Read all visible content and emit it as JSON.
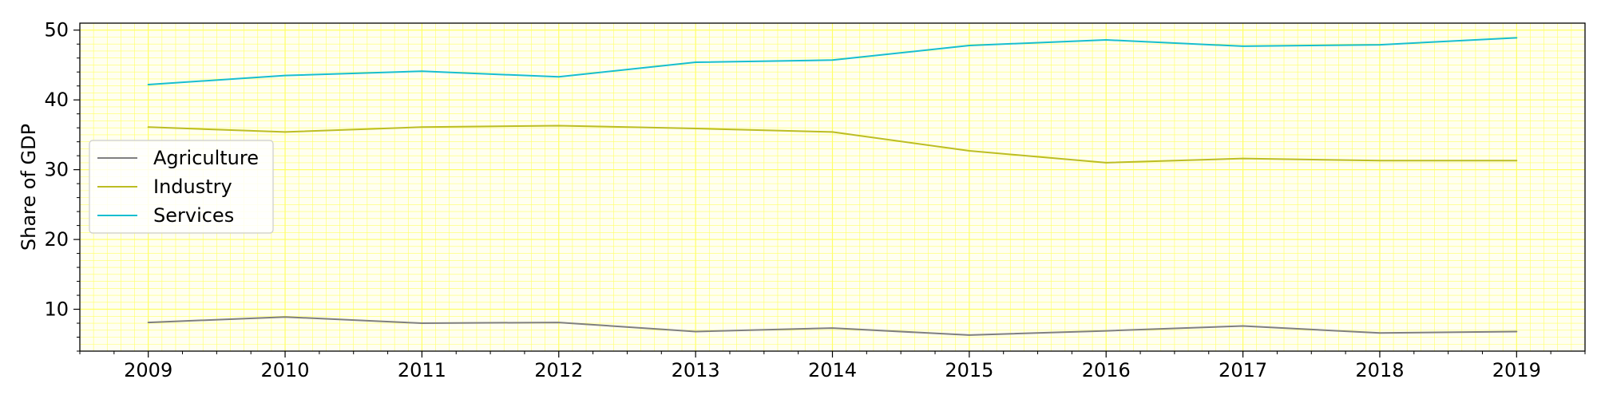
{
  "chart_data": {
    "type": "line",
    "title": "",
    "xlabel": "",
    "ylabel": "Share of GDP",
    "x": [
      2009,
      2010,
      2011,
      2012,
      2013,
      2014,
      2015,
      2016,
      2017,
      2018,
      2019
    ],
    "xlim": [
      2008.5,
      2019.5
    ],
    "ylim": [
      4,
      51
    ],
    "yticks": [
      10,
      20,
      30,
      40,
      50
    ],
    "grid": true,
    "grid_color": "#ffff66",
    "background": "#fffff0",
    "legend_position": "center-left",
    "series": [
      {
        "name": "Agriculture",
        "color": "#7f7f7f",
        "values": [
          8.1,
          8.9,
          8.0,
          8.1,
          6.8,
          7.3,
          6.3,
          6.9,
          7.6,
          6.6,
          6.8
        ]
      },
      {
        "name": "Industry",
        "color": "#bcbd22",
        "values": [
          36.1,
          35.4,
          36.1,
          36.3,
          35.9,
          35.4,
          32.7,
          31.0,
          31.6,
          31.3,
          31.3
        ]
      },
      {
        "name": "Services",
        "color": "#17becf",
        "values": [
          42.2,
          43.5,
          44.1,
          43.3,
          45.4,
          45.7,
          47.8,
          48.6,
          47.7,
          47.9,
          48.9
        ]
      }
    ]
  }
}
